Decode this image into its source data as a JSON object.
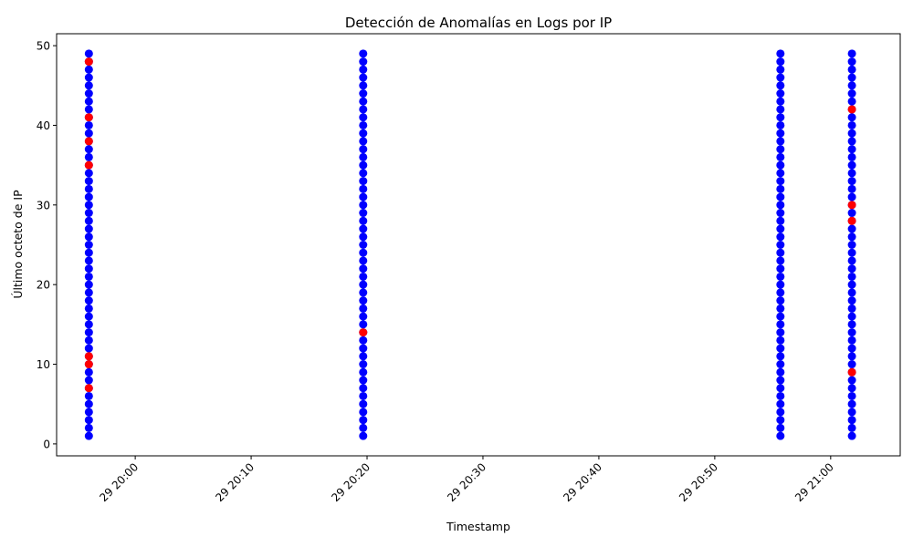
{
  "chart_data": {
    "type": "scatter",
    "title": "Detección de Anomalías en Logs por IP",
    "xlabel": "Timestamp",
    "ylabel": "Último octeto de IP",
    "ylim": [
      -1.5,
      51.5
    ],
    "xlim": [
      "19:53:13",
      "21:06:00"
    ],
    "grid": false,
    "legend": "none",
    "yticks": [
      0,
      10,
      20,
      30,
      40,
      50
    ],
    "xticks": [
      {
        "time": "20:00",
        "label": "29 20:00"
      },
      {
        "time": "20:10",
        "label": "29 20:10"
      },
      {
        "time": "20:20",
        "label": "29 20:20"
      },
      {
        "time": "20:30",
        "label": "29 20:30"
      },
      {
        "time": "20:40",
        "label": "29 20:40"
      },
      {
        "time": "20:50",
        "label": "29 20:50"
      },
      {
        "time": "21:00",
        "label": "29 21:00"
      }
    ],
    "colors": {
      "normal": "#0000ff",
      "anomaly": "#ff0000"
    },
    "series": [
      {
        "status": "normal",
        "groups": [
          {
            "time": "19:56:00",
            "y_range": [
              1,
              49
            ]
          },
          {
            "time": "20:19:40",
            "y_range": [
              1,
              49
            ]
          },
          {
            "time": "20:55:40",
            "y_range": [
              1,
              49
            ]
          },
          {
            "time": "21:01:50",
            "y_range": [
              1,
              49
            ]
          }
        ]
      },
      {
        "status": "anomaly",
        "points": [
          {
            "time": "19:56:00",
            "y": 7
          },
          {
            "time": "19:56:00",
            "y": 10
          },
          {
            "time": "19:56:00",
            "y": 11
          },
          {
            "time": "19:56:00",
            "y": 35
          },
          {
            "time": "19:56:00",
            "y": 38
          },
          {
            "time": "19:56:00",
            "y": 41
          },
          {
            "time": "19:56:00",
            "y": 48
          },
          {
            "time": "20:19:40",
            "y": 14
          },
          {
            "time": "21:01:50",
            "y": 9
          },
          {
            "time": "21:01:50",
            "y": 28
          },
          {
            "time": "21:01:50",
            "y": 30
          },
          {
            "time": "21:01:50",
            "y": 42
          }
        ]
      }
    ]
  }
}
